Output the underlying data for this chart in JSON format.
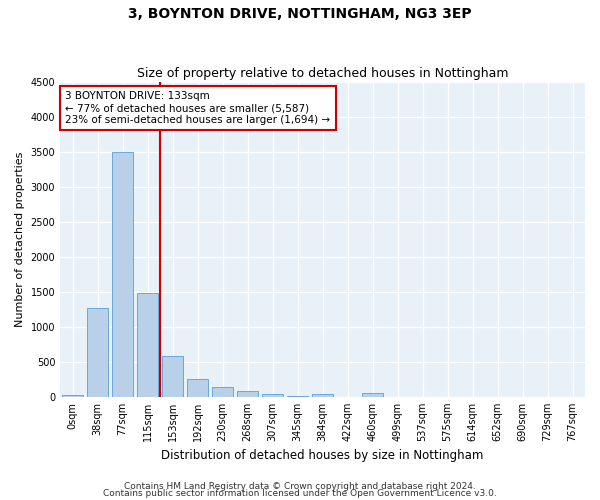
{
  "title": "3, BOYNTON DRIVE, NOTTINGHAM, NG3 3EP",
  "subtitle": "Size of property relative to detached houses in Nottingham",
  "xlabel": "Distribution of detached houses by size in Nottingham",
  "ylabel": "Number of detached properties",
  "bar_labels": [
    "0sqm",
    "38sqm",
    "77sqm",
    "115sqm",
    "153sqm",
    "192sqm",
    "230sqm",
    "268sqm",
    "307sqm",
    "345sqm",
    "384sqm",
    "422sqm",
    "460sqm",
    "499sqm",
    "537sqm",
    "575sqm",
    "614sqm",
    "652sqm",
    "690sqm",
    "729sqm",
    "767sqm"
  ],
  "bar_values": [
    30,
    1270,
    3500,
    1480,
    580,
    250,
    140,
    80,
    35,
    10,
    40,
    0,
    50,
    0,
    0,
    0,
    0,
    0,
    0,
    0,
    0
  ],
  "bar_color": "#b8d0e8",
  "bar_edge_color": "#5a9fd4",
  "vline_x": 3.5,
  "vline_color": "#cc0000",
  "annotation_line1": "3 BOYNTON DRIVE: 133sqm",
  "annotation_line2": "← 77% of detached houses are smaller (5,587)",
  "annotation_line3": "23% of semi-detached houses are larger (1,694) →",
  "annotation_box_color": "#cc0000",
  "ylim": [
    0,
    4500
  ],
  "yticks": [
    0,
    500,
    1000,
    1500,
    2000,
    2500,
    3000,
    3500,
    4000,
    4500
  ],
  "footer_line1": "Contains HM Land Registry data © Crown copyright and database right 2024.",
  "footer_line2": "Contains public sector information licensed under the Open Government Licence v3.0.",
  "bg_color": "#ffffff",
  "plot_bg_color": "#e8f0f8",
  "grid_color": "#ffffff",
  "title_fontsize": 10,
  "subtitle_fontsize": 9,
  "xlabel_fontsize": 8.5,
  "ylabel_fontsize": 8,
  "tick_fontsize": 7,
  "footer_fontsize": 6.5,
  "annotation_fontsize": 7.5
}
